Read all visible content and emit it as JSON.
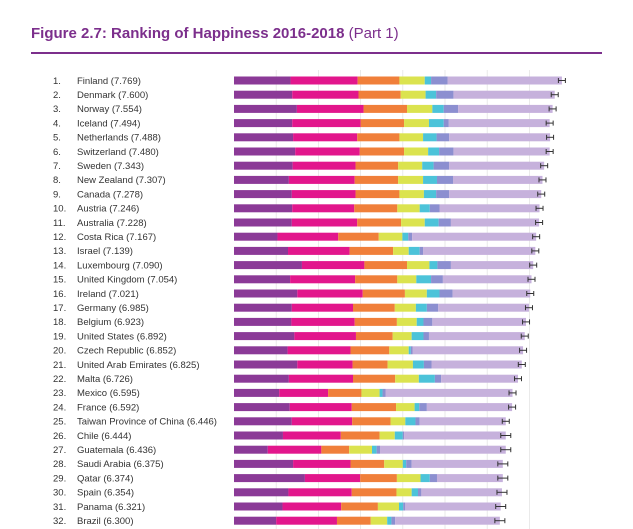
{
  "figure": {
    "title_bold": "Figure 2.7: Ranking of Happiness 2016-2018",
    "title_part": "(Part 1)"
  },
  "colors": {
    "title": "#7c2f8c",
    "segments": [
      "#8b3a97",
      "#e2168c",
      "#f07f3a",
      "#dbe34f",
      "#4cc3d9",
      "#8c8fd0",
      "#c6b1dc"
    ],
    "error_bar": "#333333"
  },
  "chart_data": {
    "type": "bar",
    "orientation": "horizontal",
    "stacked": true,
    "title": "Ranking of Happiness 2016-2018 (Part 1)",
    "series_count": 7,
    "error_bars": true,
    "xlim": [
      0,
      8
    ],
    "rows": [
      {
        "label": "1.",
        "country": "Finland (7.769)",
        "score": 7.769,
        "segments": [
          1.34,
          1.59,
          0.99,
          0.6,
          0.15,
          0.39,
          2.71
        ]
      },
      {
        "label": "2.",
        "country": "Denmark (7.600)",
        "score": 7.6,
        "segments": [
          1.38,
          1.57,
          1.0,
          0.59,
          0.25,
          0.41,
          2.4
        ]
      },
      {
        "label": "3.",
        "country": "Norway (7.554)",
        "score": 7.554,
        "segments": [
          1.49,
          1.58,
          1.03,
          0.6,
          0.27,
          0.34,
          2.24
        ]
      },
      {
        "label": "4.",
        "country": "Iceland (7.494)",
        "score": 7.494,
        "segments": [
          1.38,
          1.62,
          1.03,
          0.59,
          0.35,
          0.12,
          2.39
        ]
      },
      {
        "label": "5.",
        "country": "Netherlands (7.488)",
        "score": 7.488,
        "segments": [
          1.4,
          1.52,
          1.0,
          0.56,
          0.32,
          0.3,
          2.39
        ]
      },
      {
        "label": "6.",
        "country": "Switzerland (7.480)",
        "score": 7.48,
        "segments": [
          1.45,
          1.53,
          1.05,
          0.57,
          0.26,
          0.34,
          2.28
        ]
      },
      {
        "label": "7.",
        "country": "Sweden (7.343)",
        "score": 7.343,
        "segments": [
          1.39,
          1.49,
          1.01,
          0.57,
          0.27,
          0.37,
          2.25
        ]
      },
      {
        "label": "8.",
        "country": "New Zealand (7.307)",
        "score": 7.307,
        "segments": [
          1.3,
          1.56,
          1.03,
          0.59,
          0.33,
          0.38,
          2.12
        ]
      },
      {
        "label": "9.",
        "country": "Canada (7.278)",
        "score": 7.278,
        "segments": [
          1.37,
          1.51,
          1.04,
          0.58,
          0.29,
          0.31,
          2.18
        ]
      },
      {
        "label": "10.",
        "country": "Austria (7.246)",
        "score": 7.246,
        "segments": [
          1.38,
          1.47,
          1.02,
          0.53,
          0.24,
          0.23,
          2.37
        ]
      },
      {
        "label": "11.",
        "country": "Australia (7.228)",
        "score": 7.228,
        "segments": [
          1.37,
          1.55,
          1.04,
          0.56,
          0.33,
          0.29,
          2.09
        ]
      },
      {
        "label": "12.",
        "country": "Costa Rica (7.167)",
        "score": 7.167,
        "segments": [
          1.03,
          1.44,
          0.96,
          0.56,
          0.14,
          0.09,
          2.94
        ]
      },
      {
        "label": "13.",
        "country": "Israel (7.139)",
        "score": 7.139,
        "segments": [
          1.28,
          1.46,
          1.03,
          0.37,
          0.26,
          0.08,
          2.66
        ]
      },
      {
        "label": "14.",
        "country": "Luxembourg (7.090)",
        "score": 7.09,
        "segments": [
          1.61,
          1.48,
          1.01,
          0.53,
          0.19,
          0.32,
          1.95
        ]
      },
      {
        "label": "15.",
        "country": "United Kingdom (7.054)",
        "score": 7.054,
        "segments": [
          1.33,
          1.54,
          1.0,
          0.45,
          0.35,
          0.28,
          2.1
        ]
      },
      {
        "label": "16.",
        "country": "Ireland (7.021)",
        "score": 7.021,
        "segments": [
          1.5,
          1.55,
          1.0,
          0.52,
          0.3,
          0.31,
          1.84
        ]
      },
      {
        "label": "17.",
        "country": "Germany (6.985)",
        "score": 6.985,
        "segments": [
          1.37,
          1.45,
          0.99,
          0.5,
          0.26,
          0.27,
          2.15
        ]
      },
      {
        "label": "18.",
        "country": "Belgium (6.923)",
        "score": 6.923,
        "segments": [
          1.36,
          1.5,
          1.0,
          0.47,
          0.16,
          0.21,
          2.22
        ]
      },
      {
        "label": "19.",
        "country": "United States (6.892)",
        "score": 6.892,
        "segments": [
          1.43,
          1.46,
          0.87,
          0.45,
          0.28,
          0.13,
          2.27
        ]
      },
      {
        "label": "20.",
        "country": "Czech Republic (6.852)",
        "score": 6.852,
        "segments": [
          1.27,
          1.49,
          0.92,
          0.46,
          0.05,
          0.04,
          2.62
        ]
      },
      {
        "label": "21.",
        "country": "United Arab Emirates (6.825)",
        "score": 6.825,
        "segments": [
          1.5,
          1.31,
          0.83,
          0.6,
          0.26,
          0.18,
          2.14
        ]
      },
      {
        "label": "22.",
        "country": "Malta (6.726)",
        "score": 6.726,
        "segments": [
          1.3,
          1.52,
          1.0,
          0.56,
          0.38,
          0.15,
          1.82
        ]
      },
      {
        "label": "23.",
        "country": "Mexico (6.595)",
        "score": 6.595,
        "segments": [
          1.07,
          1.16,
          0.79,
          0.43,
          0.07,
          0.07,
          3.01
        ]
      },
      {
        "label": "24.",
        "country": "France (6.592)",
        "score": 6.592,
        "segments": [
          1.32,
          1.47,
          1.05,
          0.44,
          0.11,
          0.18,
          2.02
        ]
      },
      {
        "label": "25.",
        "country": "Taiwan Province of China (6.446)",
        "score": 6.446,
        "segments": [
          1.37,
          1.43,
          0.91,
          0.35,
          0.24,
          0.1,
          2.04
        ]
      },
      {
        "label": "26.",
        "country": "Chile (6.444)",
        "score": 6.444,
        "segments": [
          1.16,
          1.37,
          0.92,
          0.36,
          0.19,
          0.03,
          2.41
        ]
      },
      {
        "label": "27.",
        "country": "Guatemala (6.436)",
        "score": 6.436,
        "segments": [
          0.8,
          1.27,
          0.66,
          0.54,
          0.11,
          0.08,
          2.98
        ]
      },
      {
        "label": "28.",
        "country": "Saudi Arabia (6.375)",
        "score": 6.375,
        "segments": [
          1.4,
          1.36,
          0.8,
          0.44,
          0.08,
          0.13,
          2.16
        ]
      },
      {
        "label": "29.",
        "country": "Qatar (6.374)",
        "score": 6.374,
        "segments": [
          1.68,
          1.31,
          0.87,
          0.56,
          0.22,
          0.17,
          1.56
        ]
      },
      {
        "label": "30.",
        "country": "Spain (6.354)",
        "score": 6.354,
        "segments": [
          1.29,
          1.5,
          1.06,
          0.36,
          0.15,
          0.08,
          1.91
        ]
      },
      {
        "label": "31.",
        "country": "Panama (6.321)",
        "score": 6.321,
        "segments": [
          1.15,
          1.39,
          0.87,
          0.5,
          0.1,
          0.05,
          2.26
        ]
      },
      {
        "label": "32.",
        "country": "Brazil (6.300)",
        "score": 6.3,
        "segments": [
          1.0,
          1.44,
          0.8,
          0.39,
          0.1,
          0.09,
          2.48
        ]
      }
    ]
  }
}
